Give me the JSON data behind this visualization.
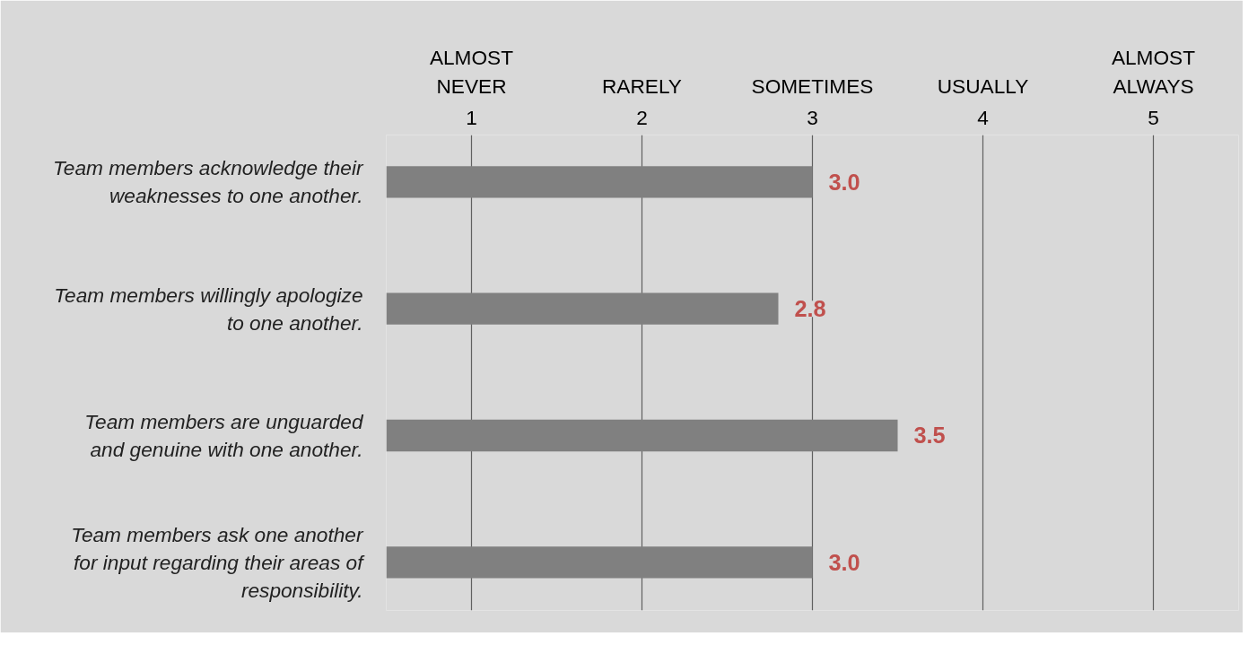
{
  "chart_data": {
    "type": "bar",
    "orientation": "horizontal",
    "categories": [
      "Team members acknowledge their\nweaknesses to one another.",
      "Team members willingly apologize\nto one another.",
      "Team members are unguarded\nand genuine with one another.",
      "Team members ask one another\nfor input regarding their areas of\nresponsibility."
    ],
    "values": [
      3.0,
      2.8,
      3.5,
      3.0
    ],
    "color": "#808080",
    "value_labels": [
      "3.0",
      "2.8",
      "3.5",
      "3.0"
    ],
    "xlim": [
      0.5,
      5.5
    ],
    "xticks": [
      1,
      2,
      3,
      4,
      5
    ],
    "annotations": [
      "ALMOST\nNEVER",
      "RARELY",
      "SOMETIMES",
      "USUALLY",
      "ALMOST\nALWAYS"
    ],
    "grid": "x"
  }
}
